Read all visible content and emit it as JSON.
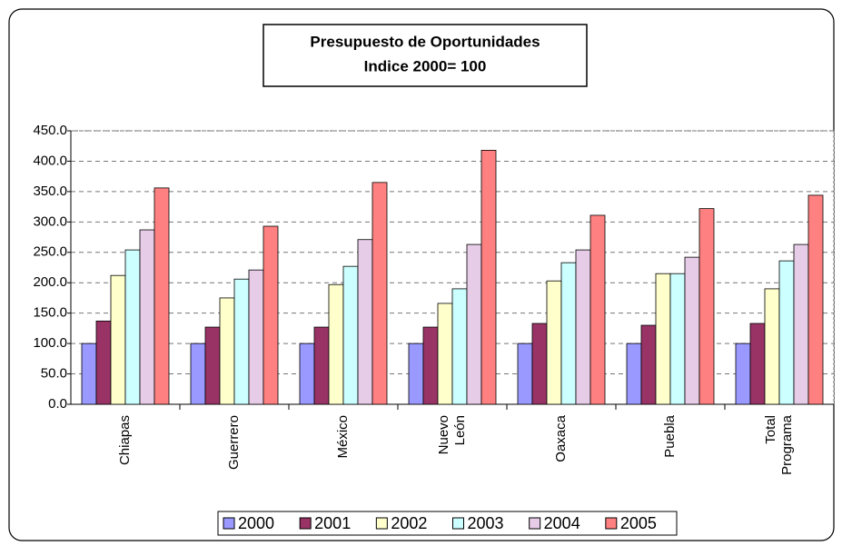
{
  "chart_data": {
    "type": "bar",
    "title": "Presupuesto de Oportunidades",
    "subtitle": "Indice 2000= 100",
    "categories": [
      "Chiapas",
      "Guerrero",
      "México",
      "Nuevo León",
      "Oaxaca",
      "Puebla",
      "Total Programa"
    ],
    "series": [
      {
        "name": "2000",
        "color": "#9999ff",
        "values": [
          100,
          100,
          100,
          100,
          100,
          100,
          100
        ]
      },
      {
        "name": "2001",
        "color": "#993366",
        "values": [
          137,
          127,
          127,
          127,
          133,
          130,
          133
        ]
      },
      {
        "name": "2002",
        "color": "#ffffcc",
        "values": [
          212,
          175,
          197,
          166,
          203,
          215,
          190
        ]
      },
      {
        "name": "2003",
        "color": "#ccffff",
        "values": [
          254,
          206,
          227,
          190,
          233,
          215,
          236
        ]
      },
      {
        "name": "2004",
        "color": "#e6cce6",
        "values": [
          287,
          221,
          271,
          263,
          254,
          242,
          263
        ]
      },
      {
        "name": "2005",
        "color": "#ff8080",
        "values": [
          356,
          293,
          365,
          418,
          311,
          322,
          344
        ]
      }
    ],
    "ylim": [
      0,
      450
    ],
    "yticks": [
      {
        "value": 0,
        "label": "0.0"
      },
      {
        "value": 50,
        "label": "50.0"
      },
      {
        "value": 100,
        "label": "100.0"
      },
      {
        "value": 150,
        "label": "150.0"
      },
      {
        "value": 200,
        "label": "200.0"
      },
      {
        "value": 250,
        "label": "250.0"
      },
      {
        "value": 300,
        "label": "300.0"
      },
      {
        "value": 350,
        "label": "350.0"
      },
      {
        "value": 400,
        "label": "400.0"
      },
      {
        "value": 450,
        "label": "450.0"
      }
    ],
    "grid": true,
    "legend": "bottom"
  }
}
